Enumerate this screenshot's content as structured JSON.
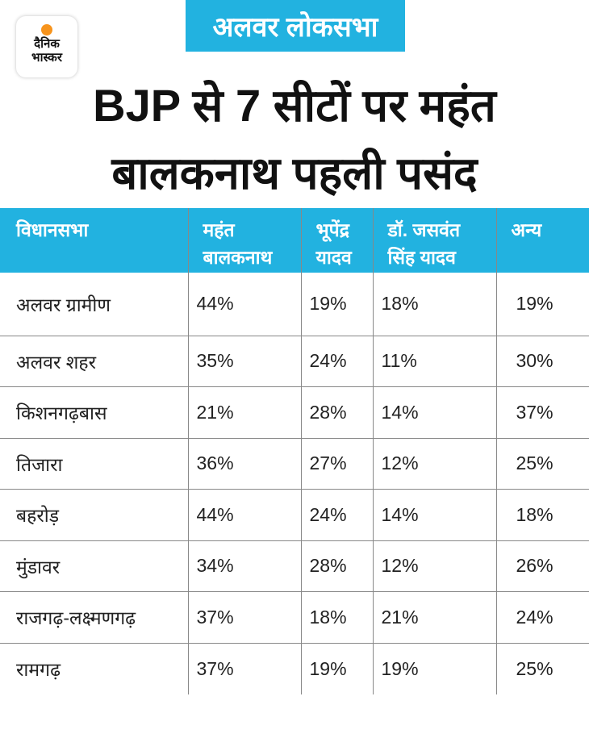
{
  "logo": {
    "line1": "दैनिक",
    "line2": "भास्कर"
  },
  "banner": "अलवर लोकसभा",
  "title": {
    "line1": "BJP से 7 सीटों पर महंत",
    "line2": "बालकनाथ पहली पसंद"
  },
  "colors": {
    "accent": "#22b2e0",
    "logo_sun": "#f7941d"
  },
  "chart_data": {
    "type": "table",
    "title": "BJP से 7 सीटों पर महंत बालकनाथ पहली पसंद",
    "columns": [
      "विधानसभा",
      "महंत बालकनाथ",
      "भूपेंद्र यादव",
      "डॉ. जसवंत सिंह यादव",
      "अन्य"
    ],
    "header_lines": [
      [
        "विधानसभा"
      ],
      [
        "महंत",
        "बालकनाथ"
      ],
      [
        "भूपेंद्र",
        "यादव"
      ],
      [
        "डॉ. जसवंत",
        "सिंह यादव"
      ],
      [
        "अन्य"
      ]
    ],
    "rows": [
      [
        "अलवर ग्रामीण",
        "44%",
        "19%",
        "18%",
        "19%"
      ],
      [
        "अलवर शहर",
        "35%",
        "24%",
        "11%",
        "30%"
      ],
      [
        "किशनगढ़बास",
        "21%",
        "28%",
        "14%",
        "37%"
      ],
      [
        "तिजारा",
        "36%",
        "27%",
        "12%",
        "25%"
      ],
      [
        "बहरोड़",
        "44%",
        "24%",
        "14%",
        "18%"
      ],
      [
        "मुंडावर",
        "34%",
        "28%",
        "12%",
        "26%"
      ],
      [
        "राजगढ़-लक्ष्मणगढ़",
        "37%",
        "18%",
        "21%",
        "24%"
      ],
      [
        "रामगढ़",
        "37%",
        "19%",
        "19%",
        "25%"
      ]
    ]
  }
}
